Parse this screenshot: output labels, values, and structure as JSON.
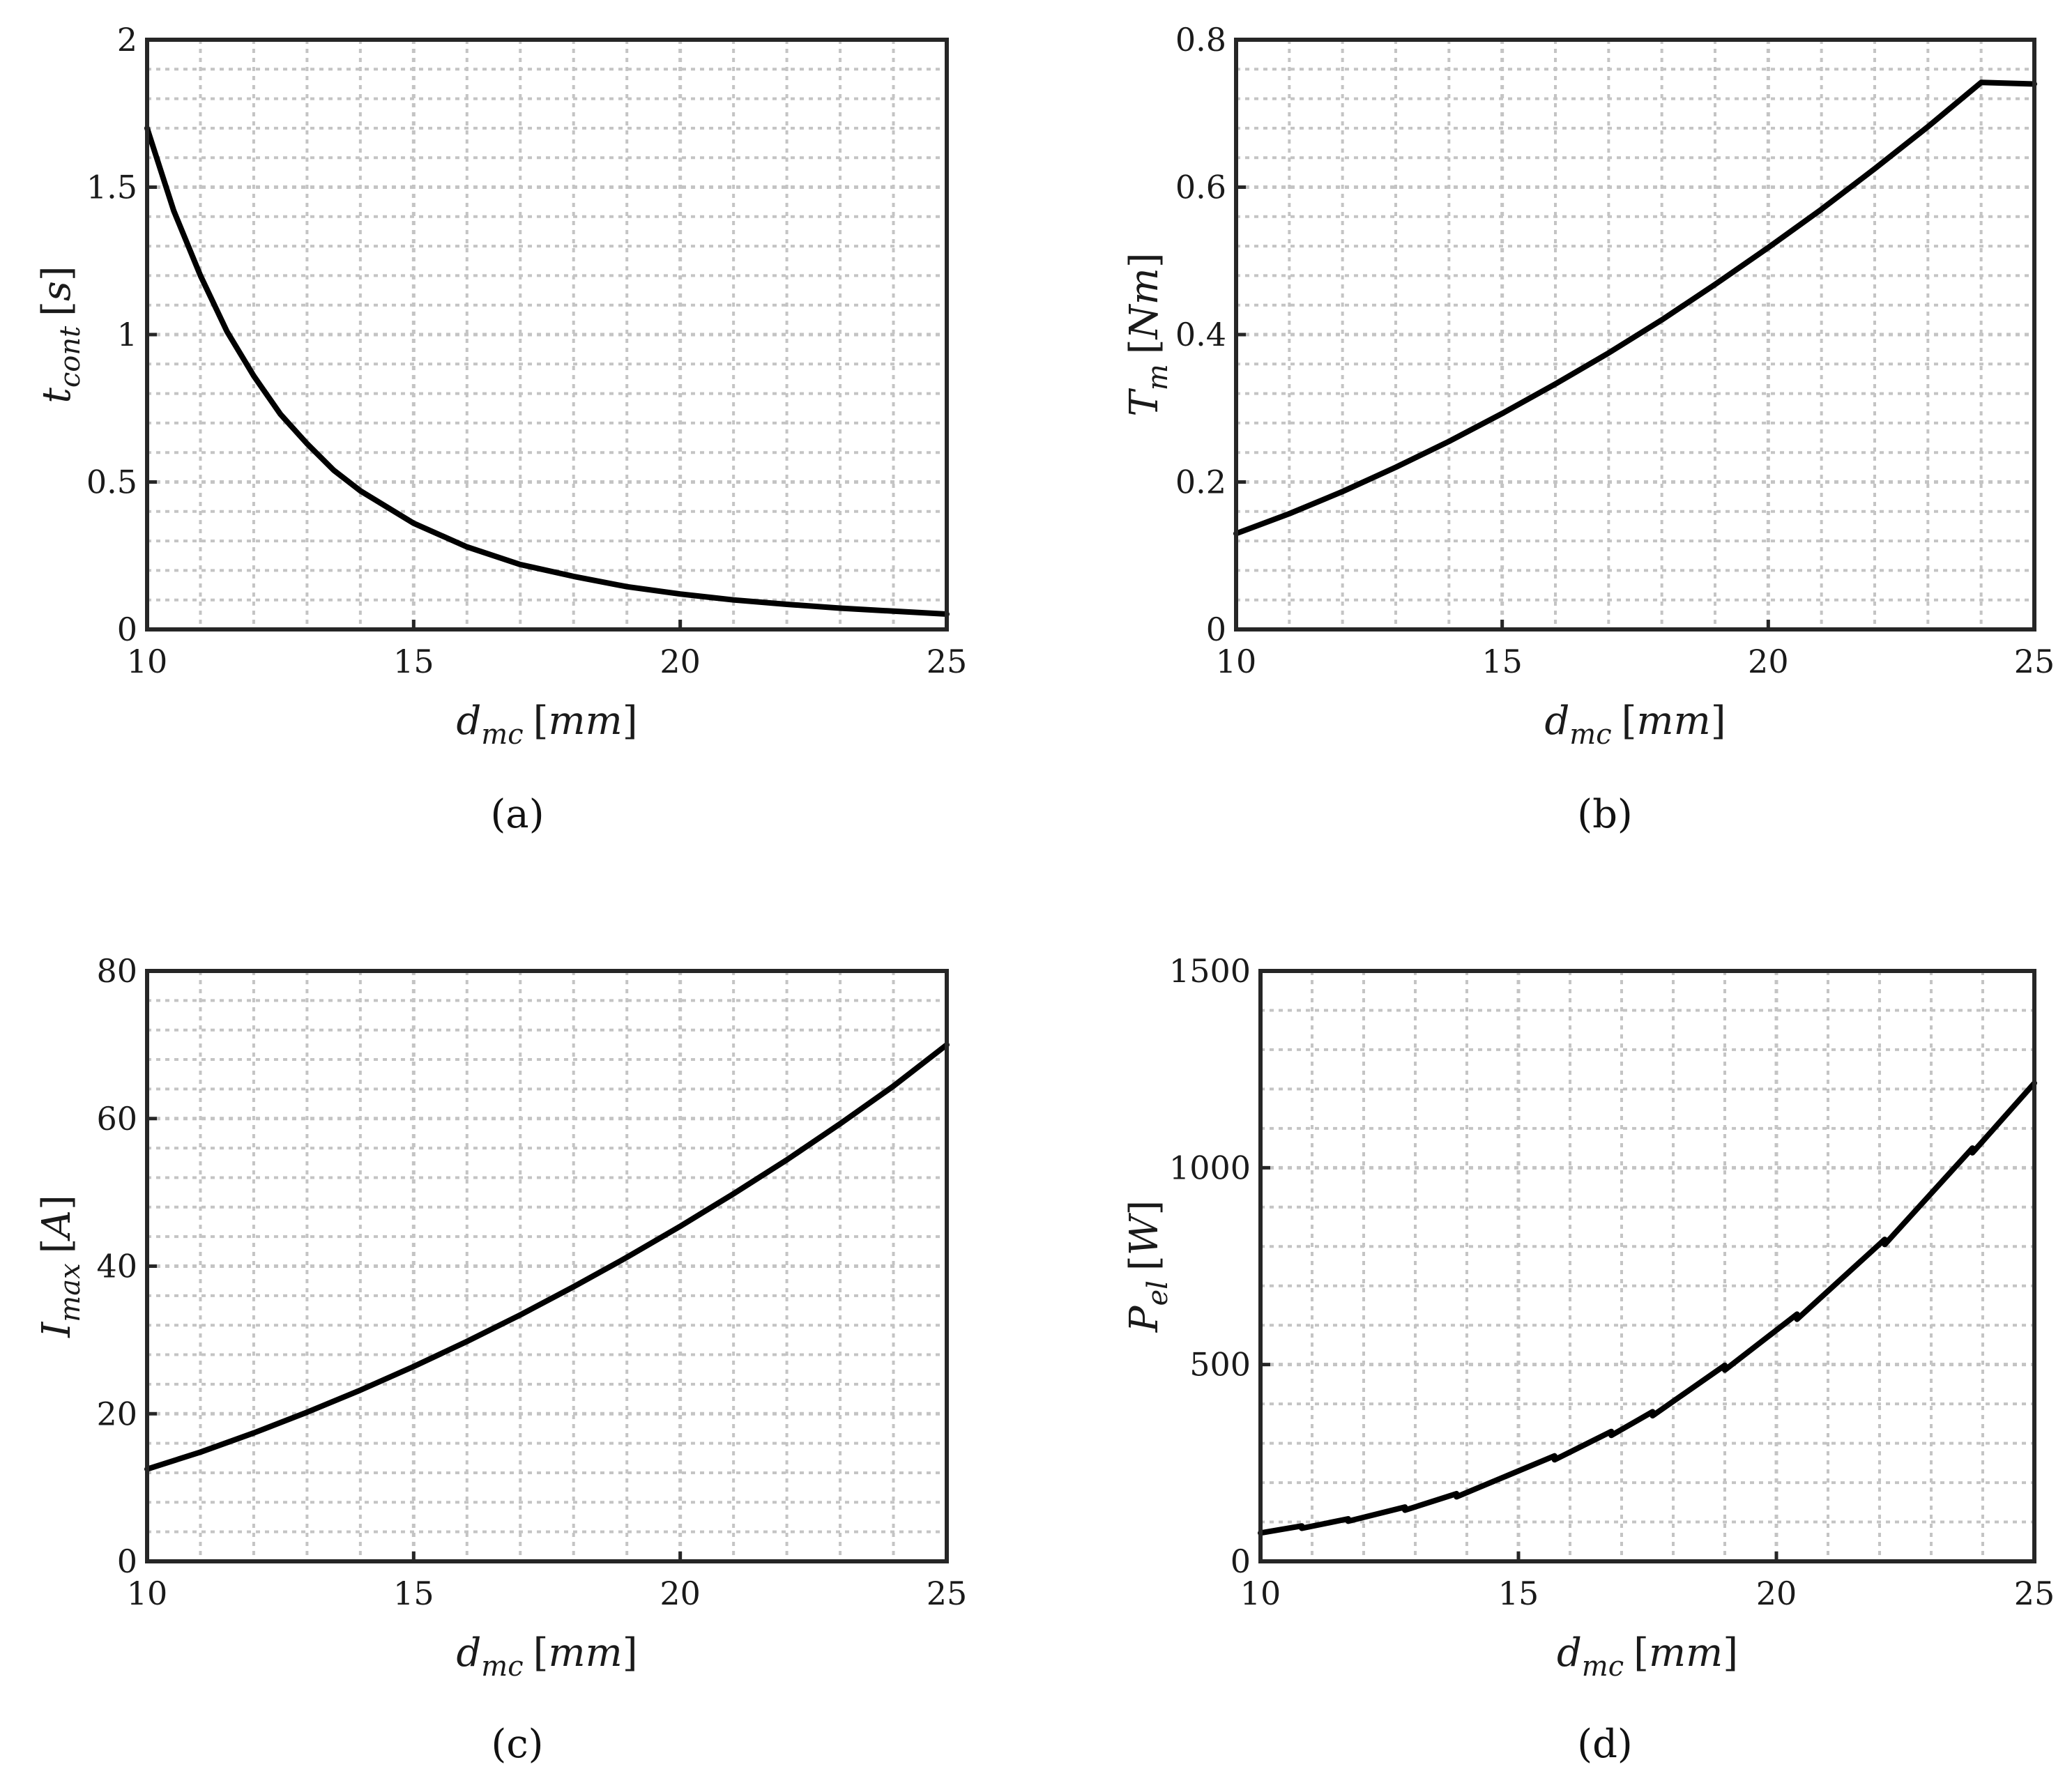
{
  "chart_data": [
    {
      "panel": "a",
      "type": "line",
      "caption": "(a)",
      "xlabel": {
        "var": "d",
        "sub": "mc",
        "unit": "mm"
      },
      "ylabel": {
        "var": "t",
        "sub": "cont",
        "unit": "s"
      },
      "xlim": [
        10,
        25
      ],
      "ylim": [
        0,
        2
      ],
      "xticks": [
        "10",
        "15",
        "20",
        "25"
      ],
      "yticks": [
        "0",
        "0.5",
        "1",
        "1.5",
        "2"
      ],
      "grid": "major and minor, dotted",
      "x": [
        10,
        10.5,
        11,
        11.5,
        12,
        12.5,
        13,
        13.5,
        14,
        15,
        16,
        17,
        18,
        19,
        20,
        21,
        22,
        23,
        24,
        25
      ],
      "y": [
        1.7,
        1.42,
        1.2,
        1.01,
        0.86,
        0.73,
        0.63,
        0.54,
        0.47,
        0.36,
        0.28,
        0.22,
        0.18,
        0.145,
        0.12,
        0.1,
        0.085,
        0.072,
        0.062,
        0.052
      ]
    },
    {
      "panel": "b",
      "type": "line",
      "caption": "(b)",
      "xlabel": {
        "var": "d",
        "sub": "mc",
        "unit": "mm"
      },
      "ylabel": {
        "var": "T",
        "sub": "m",
        "unit": "Nm"
      },
      "xlim": [
        10,
        25
      ],
      "ylim": [
        0,
        0.8
      ],
      "xticks": [
        "10",
        "15",
        "20",
        "25"
      ],
      "yticks": [
        "0",
        "0.2",
        "0.4",
        "0.6",
        "0.8"
      ],
      "grid": "major and minor, dotted",
      "x": [
        10,
        11,
        12,
        13,
        14,
        15,
        16,
        17,
        18,
        19,
        20,
        21,
        22,
        23,
        24,
        25
      ],
      "y": [
        0.13,
        0.157,
        0.187,
        0.22,
        0.255,
        0.293,
        0.333,
        0.375,
        0.42,
        0.468,
        0.518,
        0.57,
        0.625,
        0.682,
        0.742,
        0.74
      ]
    },
    {
      "panel": "c",
      "type": "line",
      "caption": "(c)",
      "xlabel": {
        "var": "d",
        "sub": "mc",
        "unit": "mm"
      },
      "ylabel": {
        "var": "I",
        "sub": "max",
        "unit": "A"
      },
      "xlim": [
        10,
        25
      ],
      "ylim": [
        0,
        80
      ],
      "xticks": [
        "10",
        "15",
        "20",
        "25"
      ],
      "yticks": [
        "0",
        "20",
        "40",
        "60",
        "80"
      ],
      "grid": "major and minor, dotted",
      "x": [
        10,
        11,
        12,
        13,
        14,
        15,
        16,
        17,
        18,
        19,
        20,
        21,
        22,
        23,
        24,
        25
      ],
      "y": [
        12.5,
        14.8,
        17.4,
        20.2,
        23.2,
        26.4,
        29.8,
        33.4,
        37.2,
        41.2,
        45.4,
        49.8,
        54.4,
        59.3,
        64.4,
        70
      ]
    },
    {
      "panel": "d",
      "type": "line",
      "caption": "(d)",
      "xlabel": {
        "var": "d",
        "sub": "mc",
        "unit": "mm"
      },
      "ylabel": {
        "var": "P",
        "sub": "el",
        "unit": "W"
      },
      "xlim": [
        10,
        25
      ],
      "ylim": [
        0,
        1500
      ],
      "xticks": [
        "10",
        "15",
        "20",
        "25"
      ],
      "yticks": [
        "0",
        "500",
        "1000",
        "1500"
      ],
      "grid": "major and minor, dotted",
      "x": [
        10,
        10.8,
        10.8,
        11.7,
        11.7,
        12.8,
        12.8,
        13.8,
        13.8,
        15.7,
        15.7,
        16.8,
        16.8,
        17.6,
        17.6,
        19.0,
        19.0,
        20.4,
        20.4,
        22.1,
        22.1,
        23.8,
        23.8,
        25
      ],
      "y": [
        72,
        90,
        84,
        108,
        102,
        138,
        130,
        172,
        164,
        268,
        258,
        330,
        320,
        380,
        370,
        498,
        486,
        628,
        615,
        818,
        805,
        1050,
        1038,
        1215
      ]
    }
  ]
}
